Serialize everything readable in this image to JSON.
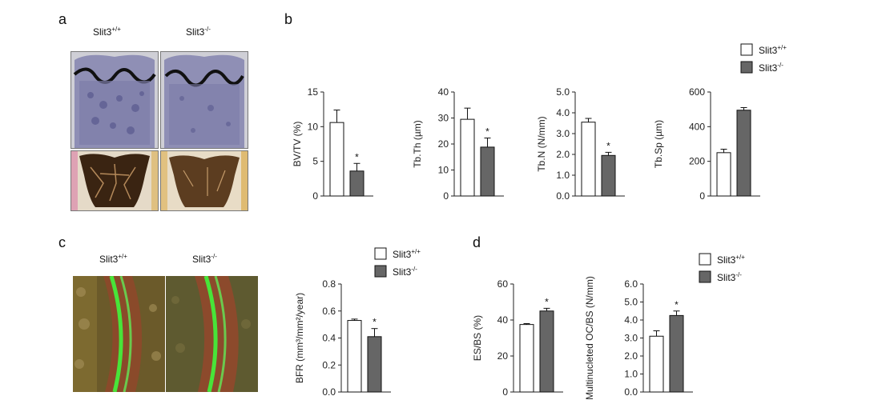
{
  "panels": {
    "a": {
      "letter": "a",
      "labels": [
        {
          "base": "Slit3",
          "sup": "+/+"
        },
        {
          "base": "Slit3",
          "sup": "-/-"
        }
      ]
    },
    "b": {
      "letter": "b"
    },
    "c": {
      "letter": "c",
      "labels": [
        {
          "base": "Slit3",
          "sup": "+/+"
        },
        {
          "base": "Slit3",
          "sup": "-/-"
        }
      ]
    },
    "d": {
      "letter": "d"
    }
  },
  "legends": [
    {
      "panel": "b",
      "items": [
        {
          "base": "Slit3",
          "sup": "+/+",
          "fill": "#ffffff"
        },
        {
          "base": "Slit3",
          "sup": "-/-",
          "fill": "#666666"
        }
      ]
    },
    {
      "panel": "c",
      "items": [
        {
          "base": "Slit3",
          "sup": "+/+",
          "fill": "#ffffff"
        },
        {
          "base": "Slit3",
          "sup": "-/-",
          "fill": "#666666"
        }
      ]
    },
    {
      "panel": "d",
      "items": [
        {
          "base": "Slit3",
          "sup": "+/+",
          "fill": "#ffffff"
        },
        {
          "base": "Slit3",
          "sup": "-/-",
          "fill": "#666666"
        }
      ]
    }
  ],
  "colors": {
    "wild_type": "#ffffff",
    "knockout": "#666666",
    "axis": "#222222"
  },
  "chart_data": [
    {
      "type": "bar",
      "panel": "b",
      "ylabel": "BV/TV (%)",
      "ylim": [
        0,
        15
      ],
      "yticks": [
        "0",
        "5",
        "10",
        "15"
      ],
      "categories": [
        "Slit3+/+",
        "Slit3-/-"
      ],
      "values": [
        10.6,
        3.6
      ],
      "errors": [
        1.8,
        1.1
      ],
      "significance": [
        "",
        "*"
      ]
    },
    {
      "type": "bar",
      "panel": "b",
      "ylabel": "Tb.Th (µm)",
      "ylim": [
        0,
        40
      ],
      "yticks": [
        "0",
        "10",
        "20",
        "30",
        "40"
      ],
      "categories": [
        "Slit3+/+",
        "Slit3-/-"
      ],
      "values": [
        29.5,
        18.8
      ],
      "errors": [
        4.3,
        3.5
      ],
      "significance": [
        "",
        "*"
      ]
    },
    {
      "type": "bar",
      "panel": "b",
      "ylabel": "Tb.N (N/mm)",
      "ylim": [
        0,
        5
      ],
      "yticks": [
        "0.0",
        "1.0",
        "2.0",
        "3.0",
        "4.0",
        "5.0"
      ],
      "categories": [
        "Slit3+/+",
        "Slit3-/-"
      ],
      "values": [
        3.55,
        1.95
      ],
      "errors": [
        0.18,
        0.15
      ],
      "significance": [
        "",
        "*"
      ]
    },
    {
      "type": "bar",
      "panel": "b",
      "ylabel": "Tb.Sp (µm)",
      "ylim": [
        0,
        600
      ],
      "yticks": [
        "0",
        "200",
        "400",
        "600"
      ],
      "categories": [
        "Slit3+/+",
        "Slit3-/-"
      ],
      "values": [
        250,
        495
      ],
      "errors": [
        20,
        15
      ],
      "significance": [
        "",
        ""
      ]
    },
    {
      "type": "bar",
      "panel": "c",
      "ylabel": "BFR (mm³/mm²/year)",
      "ylim": [
        0,
        0.8
      ],
      "yticks": [
        "0.0",
        "0.2",
        "0.4",
        "0.6",
        "0.8"
      ],
      "categories": [
        "Slit3+/+",
        "Slit3-/-"
      ],
      "values": [
        0.53,
        0.41
      ],
      "errors": [
        0.01,
        0.06
      ],
      "significance": [
        "",
        "*"
      ]
    },
    {
      "type": "bar",
      "panel": "d",
      "ylabel": "ES/BS (%)",
      "ylim": [
        0,
        60
      ],
      "yticks": [
        "0",
        "20",
        "40",
        "60"
      ],
      "categories": [
        "Slit3+/+",
        "Slit3-/-"
      ],
      "values": [
        37.5,
        45
      ],
      "errors": [
        0.5,
        1.5
      ],
      "significance": [
        "",
        "*"
      ]
    },
    {
      "type": "bar",
      "panel": "d",
      "ylabel": "Multinucleted OC/BS (N/mm)",
      "ylim": [
        0,
        6
      ],
      "yticks": [
        "0.0",
        "1.0",
        "2.0",
        "3.0",
        "4.0",
        "5.0",
        "6.0"
      ],
      "categories": [
        "Slit3+/+",
        "Slit3-/-"
      ],
      "values": [
        3.1,
        4.25
      ],
      "errors": [
        0.3,
        0.25
      ],
      "significance": [
        "",
        "*"
      ]
    }
  ]
}
